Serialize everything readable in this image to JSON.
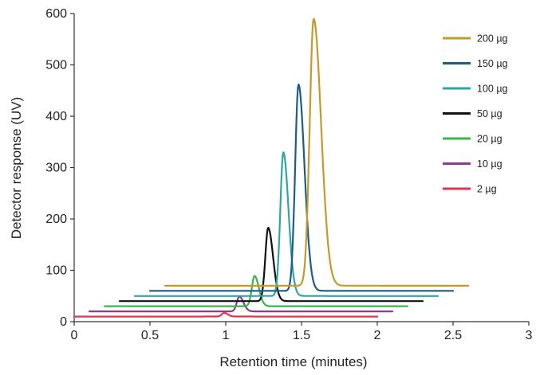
{
  "chart_data": {
    "type": "line",
    "title": "",
    "xlabel": "Retention time (minutes)",
    "ylabel": "Detector response (UV)",
    "xlim": [
      0,
      3
    ],
    "ylim": [
      0,
      600
    ],
    "x_ticks": [
      0,
      0.5,
      1,
      1.5,
      2,
      2.5,
      3
    ],
    "x_tick_labels": [
      "0",
      "0.5",
      "1",
      "1.5",
      "2",
      "2.5",
      "3"
    ],
    "y_ticks": [
      0,
      100,
      200,
      300,
      400,
      500,
      600
    ],
    "y_tick_labels": [
      "0",
      "100",
      "200",
      "300",
      "400",
      "500",
      "600"
    ],
    "grid": false,
    "legend_position": "top-right",
    "series": [
      {
        "name": "200 µg",
        "color": "#c49a2c",
        "x_start": 0.6,
        "x_end": 2.6,
        "baseline": 70,
        "peak_x": 1.58,
        "peak_y": 590,
        "peak_width": 0.026,
        "tailing": 1.9
      },
      {
        "name": "150 µg",
        "color": "#1e5c83",
        "x_start": 0.5,
        "x_end": 2.5,
        "baseline": 60,
        "peak_x": 1.48,
        "peak_y": 462,
        "peak_width": 0.022,
        "tailing": 1.8
      },
      {
        "name": "100 µg",
        "color": "#2fa5a5",
        "x_start": 0.4,
        "x_end": 2.4,
        "baseline": 50,
        "peak_x": 1.38,
        "peak_y": 330,
        "peak_width": 0.02,
        "tailing": 1.7
      },
      {
        "name": "50 µg",
        "color": "#111111",
        "x_start": 0.3,
        "x_end": 2.3,
        "baseline": 40,
        "peak_x": 1.28,
        "peak_y": 183,
        "peak_width": 0.019,
        "tailing": 1.7
      },
      {
        "name": "20 µg",
        "color": "#3bb54a",
        "x_start": 0.2,
        "x_end": 2.2,
        "baseline": 30,
        "peak_x": 1.19,
        "peak_y": 89,
        "peak_width": 0.018,
        "tailing": 1.6
      },
      {
        "name": "10 µg",
        "color": "#8e3a93",
        "x_start": 0.1,
        "x_end": 2.1,
        "baseline": 20,
        "peak_x": 1.09,
        "peak_y": 49,
        "peak_width": 0.017,
        "tailing": 1.6
      },
      {
        "name": "2 µg",
        "color": "#e0344f",
        "x_start": 0.0,
        "x_end": 2.0,
        "baseline": 10,
        "peak_x": 0.99,
        "peak_y": 17,
        "peak_width": 0.016,
        "tailing": 1.5
      }
    ]
  }
}
